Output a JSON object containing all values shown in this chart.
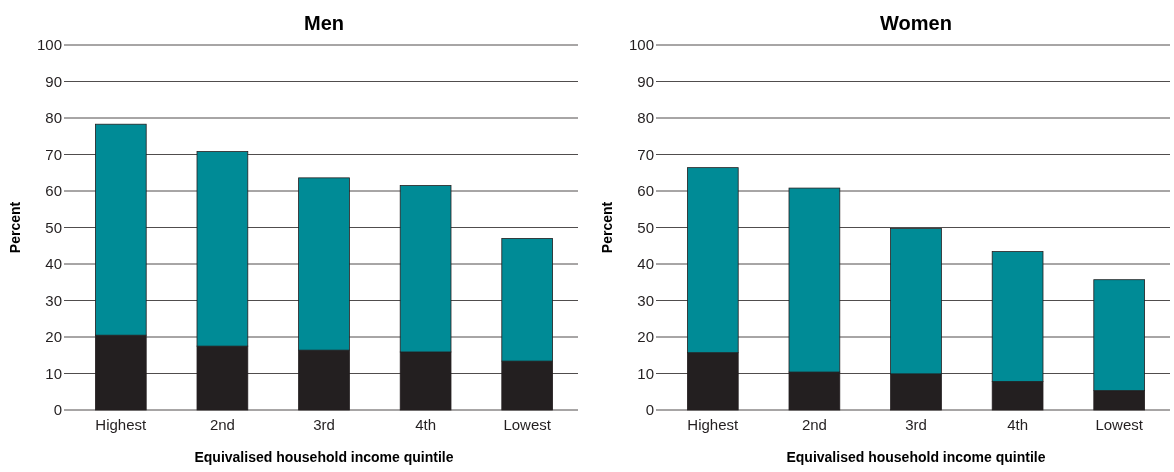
{
  "chart_data": [
    {
      "type": "bar",
      "title": "Men",
      "xlabel": "Equivalised household income quintile",
      "ylabel": "Percent",
      "categories": [
        "Highest",
        "2nd",
        "3rd",
        "4th",
        "Lowest"
      ],
      "stacked": true,
      "series": [
        {
          "color": "#231f20",
          "values": [
            20.5,
            17.5,
            16.4,
            15.9,
            13.4
          ]
        },
        {
          "color": "#008b96",
          "values": [
            57.8,
            53.3,
            47.2,
            45.6,
            33.6
          ]
        }
      ],
      "ylim": [
        0,
        100
      ],
      "yticks": [
        0,
        10,
        20,
        30,
        40,
        50,
        60,
        70,
        80,
        90,
        100
      ],
      "grid": "y"
    },
    {
      "type": "bar",
      "title": "Women",
      "xlabel": "Equivalised household income quintile",
      "ylabel": "Percent",
      "categories": [
        "Highest",
        "2nd",
        "3rd",
        "4th",
        "Lowest"
      ],
      "stacked": true,
      "series": [
        {
          "color": "#231f20",
          "values": [
            15.7,
            10.4,
            9.9,
            7.8,
            5.3
          ]
        },
        {
          "color": "#008b96",
          "values": [
            50.7,
            50.4,
            39.8,
            35.6,
            30.4
          ]
        }
      ],
      "ylim": [
        0,
        100
      ],
      "yticks": [
        0,
        10,
        20,
        30,
        40,
        50,
        60,
        70,
        80,
        90,
        100
      ],
      "grid": "y"
    }
  ]
}
